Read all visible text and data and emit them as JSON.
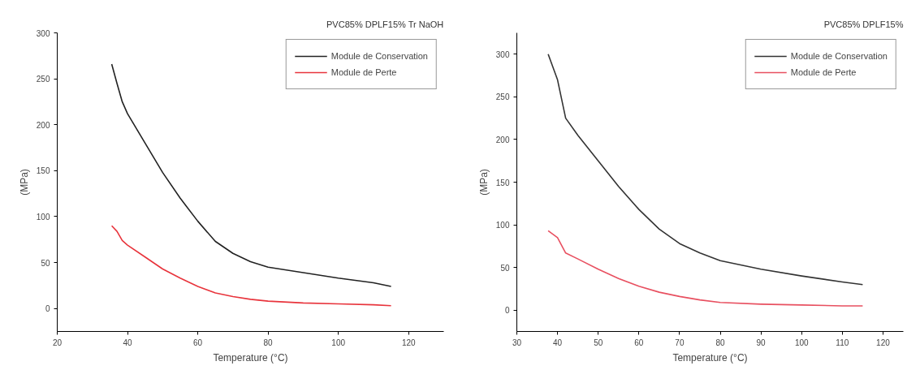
{
  "chart_data": [
    {
      "type": "line",
      "title": "PVC85% DPLF15% Tr NaOH",
      "xlabel": "Temperature (°C)",
      "ylabel": "(MPa)",
      "xlim": [
        20,
        130
      ],
      "ylim": [
        -25,
        300
      ],
      "xticks": [
        20,
        40,
        60,
        80,
        100,
        120
      ],
      "yticks": [
        0,
        50,
        100,
        150,
        200,
        250,
        300
      ],
      "grid": false,
      "legend": "top right",
      "series": [
        {
          "name": "Module de Conservation",
          "color": "#222222",
          "x": [
            35.5,
            37,
            38.5,
            40,
            45,
            50,
            55,
            60,
            65,
            70,
            75,
            80,
            90,
            100,
            110,
            115
          ],
          "values": [
            266,
            245,
            225,
            212,
            180,
            148,
            120,
            95,
            73,
            60,
            51,
            45,
            39,
            33,
            28,
            24
          ]
        },
        {
          "name": "Module de Perte",
          "color": "#e8343c",
          "x": [
            35.5,
            37,
            38.5,
            40,
            45,
            50,
            55,
            60,
            65,
            70,
            75,
            80,
            90,
            100,
            110,
            115
          ],
          "values": [
            90,
            84,
            74,
            69,
            56,
            43,
            33,
            24,
            17,
            13,
            10,
            8,
            6,
            5,
            4,
            3
          ]
        }
      ]
    },
    {
      "type": "line",
      "title": "PVC85% DPLF15%",
      "xlabel": "Temperature (°C)",
      "ylabel": "(MPa)",
      "xlim": [
        30,
        125
      ],
      "ylim": [
        -25,
        325
      ],
      "xticks": [
        30,
        40,
        50,
        60,
        70,
        80,
        90,
        100,
        110,
        120
      ],
      "yticks": [
        0,
        50,
        100,
        150,
        200,
        250,
        300
      ],
      "grid": false,
      "legend": "top right",
      "series": [
        {
          "name": "Module de Conservation",
          "color": "#333333",
          "x": [
            37.7,
            40,
            42,
            45,
            50,
            55,
            60,
            65,
            70,
            75,
            80,
            90,
            100,
            110,
            115
          ],
          "values": [
            300,
            270,
            225,
            205,
            175,
            145,
            118,
            95,
            78,
            67,
            58,
            48,
            40,
            33,
            30
          ]
        },
        {
          "name": "Module de Perte",
          "color": "#e85060",
          "x": [
            37.7,
            40,
            42,
            45,
            50,
            55,
            60,
            65,
            70,
            75,
            80,
            90,
            100,
            110,
            115
          ],
          "values": [
            93,
            85,
            67,
            60,
            48,
            37,
            28,
            21,
            16,
            12,
            9,
            7,
            6,
            5,
            5
          ]
        }
      ]
    }
  ]
}
